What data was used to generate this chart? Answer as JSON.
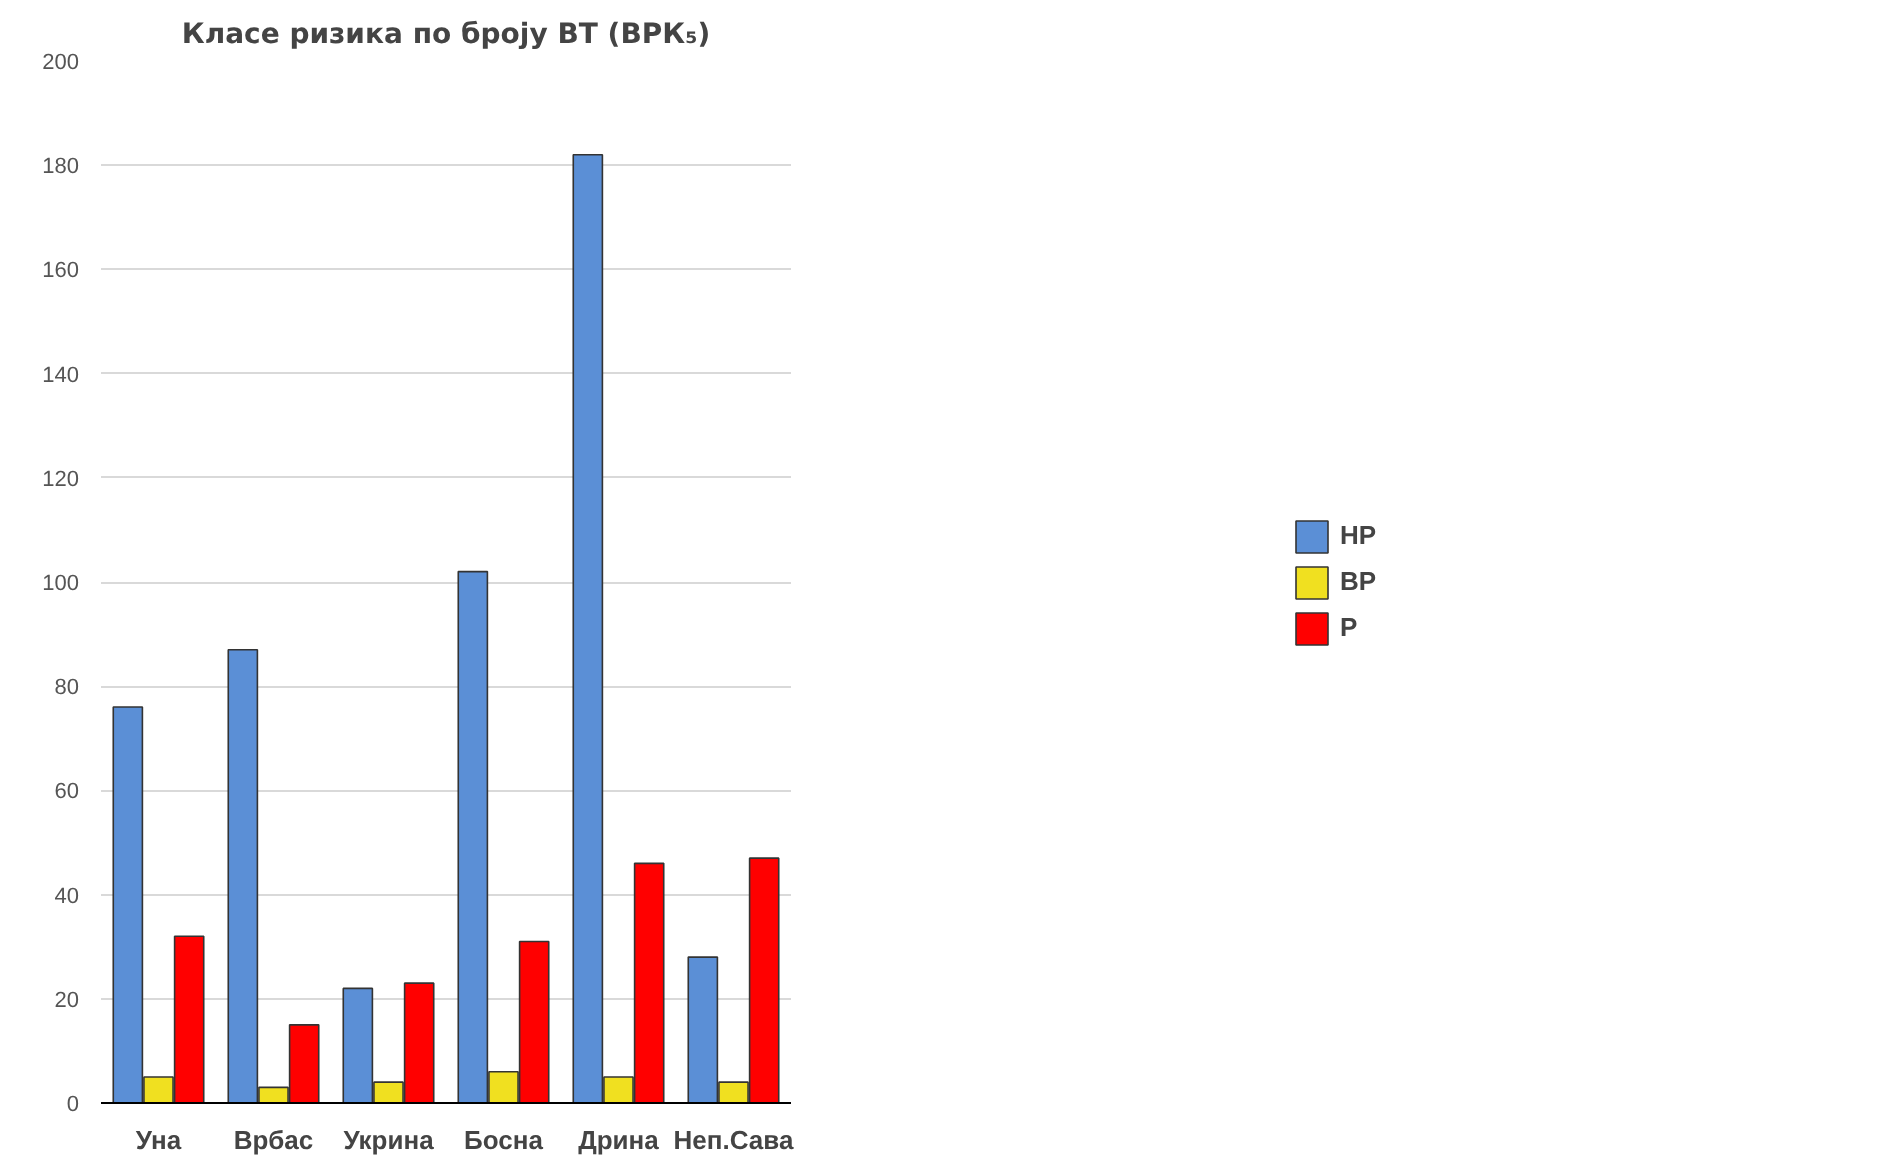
{
  "chart_data": {
    "type": "bar",
    "title": "Класе ризика по броју ВТ (ВРК₅)",
    "categories": [
      "Уна",
      "Врбас",
      "Укрина",
      "Босна",
      "Дрина",
      "Неп.Сава"
    ],
    "series": [
      {
        "name": "НР",
        "color": "#5b8fd6",
        "values": [
          76,
          87,
          22,
          102,
          182,
          28
        ]
      },
      {
        "name": "ВР",
        "color": "#f0e020",
        "values": [
          5,
          3,
          4,
          6,
          5,
          4
        ]
      },
      {
        "name": "Р",
        "color": "#ff0000",
        "values": [
          32,
          15,
          23,
          31,
          46,
          47
        ]
      }
    ],
    "ylim": [
      0,
      200
    ],
    "yticks": [
      0,
      20,
      40,
      60,
      80,
      100,
      120,
      140,
      160,
      180,
      200
    ],
    "grid": "y",
    "legend": "right"
  }
}
